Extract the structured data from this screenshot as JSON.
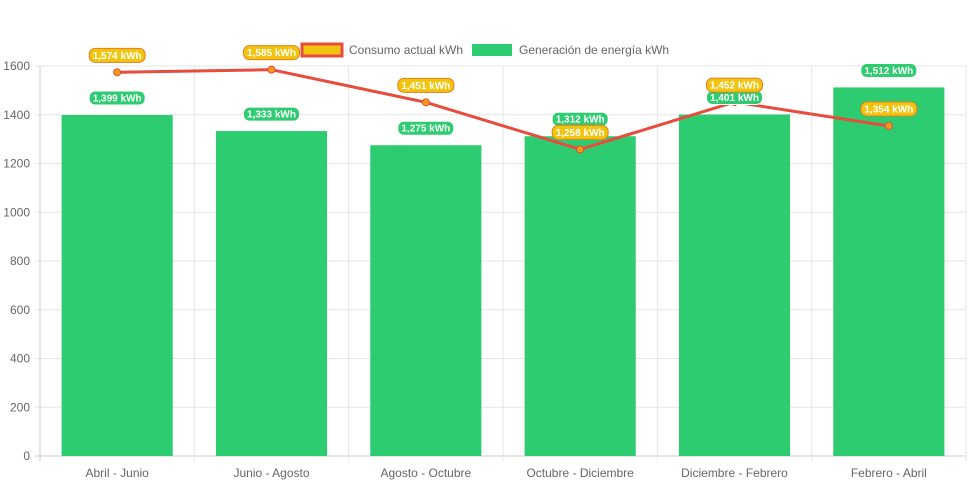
{
  "chart_data": {
    "type": "bar",
    "categories": [
      "Abril - Junio",
      "Junio - Agosto",
      "Agosto - Octubre",
      "Octubre - Diciembre",
      "Diciembre - Febrero",
      "Febrero - Abril"
    ],
    "series": [
      {
        "name": "Consumo actual kWh",
        "type": "line",
        "values": [
          1574,
          1585,
          1451,
          1258,
          1452,
          1354
        ],
        "labels": [
          "1,574 kWh",
          "1,585 kWh",
          "1,451 kWh",
          "1,258 kWh",
          "1,452 kWh",
          "1,354 kWh"
        ],
        "color": "#e74c3c",
        "label_color": "#f1c40f"
      },
      {
        "name": "Generación de energía kWh",
        "type": "bar",
        "values": [
          1399,
          1333,
          1275,
          1312,
          1401,
          1512
        ],
        "labels": [
          "1,399 kWh",
          "1,333 kWh",
          "1,275 kWh",
          "1,312 kWh",
          "1,401 kWh",
          "1,512 kWh"
        ],
        "color": "#2ecc71"
      }
    ],
    "ylim": [
      0,
      1600
    ],
    "yticks": [
      "0",
      "200",
      "400",
      "600",
      "800",
      "1000",
      "1200",
      "1400",
      "1600"
    ],
    "grid": true,
    "legend": "top-center",
    "title": "",
    "xlabel": "",
    "ylabel": ""
  }
}
